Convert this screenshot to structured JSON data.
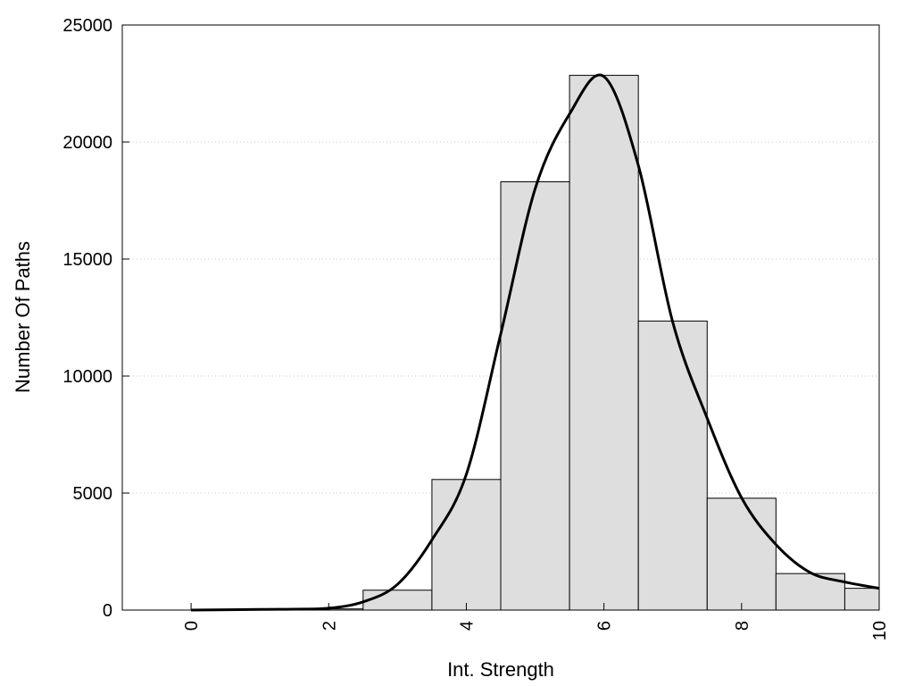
{
  "chart_data": {
    "type": "bar",
    "xlabel": "Int. Strength",
    "ylabel": "Number Of Paths",
    "xlim": [
      -1,
      10
    ],
    "ylim": [
      0,
      25000
    ],
    "x_ticks": [
      0,
      2,
      4,
      6,
      8,
      10
    ],
    "y_ticks": [
      0,
      5000,
      10000,
      15000,
      20000,
      25000
    ],
    "bar_width": 1,
    "bars": [
      {
        "x": 0,
        "value": 0
      },
      {
        "x": 1,
        "value": 0
      },
      {
        "x": 2,
        "value": 50
      },
      {
        "x": 3,
        "value": 850
      },
      {
        "x": 4,
        "value": 5580
      },
      {
        "x": 5,
        "value": 18300
      },
      {
        "x": 6,
        "value": 22850
      },
      {
        "x": 7,
        "value": 12350
      },
      {
        "x": 8,
        "value": 4780
      },
      {
        "x": 9,
        "value": 1560
      },
      {
        "x": 10,
        "value": 930
      }
    ],
    "curve": {
      "x": [
        0,
        1,
        1.5,
        2,
        2.5,
        3,
        3.5,
        4,
        4.5,
        5,
        5.5,
        6,
        6.5,
        7,
        7.5,
        8,
        8.5,
        9,
        9.5,
        10
      ],
      "y": [
        0,
        30,
        40,
        80,
        350,
        1100,
        3000,
        5800,
        11800,
        18000,
        21200,
        22800,
        19000,
        12300,
        8200,
        4800,
        2800,
        1600,
        1200,
        930
      ]
    },
    "grid": "horizontal-dotted",
    "bar_fill": "#dedede",
    "curve_color": "#000000"
  }
}
